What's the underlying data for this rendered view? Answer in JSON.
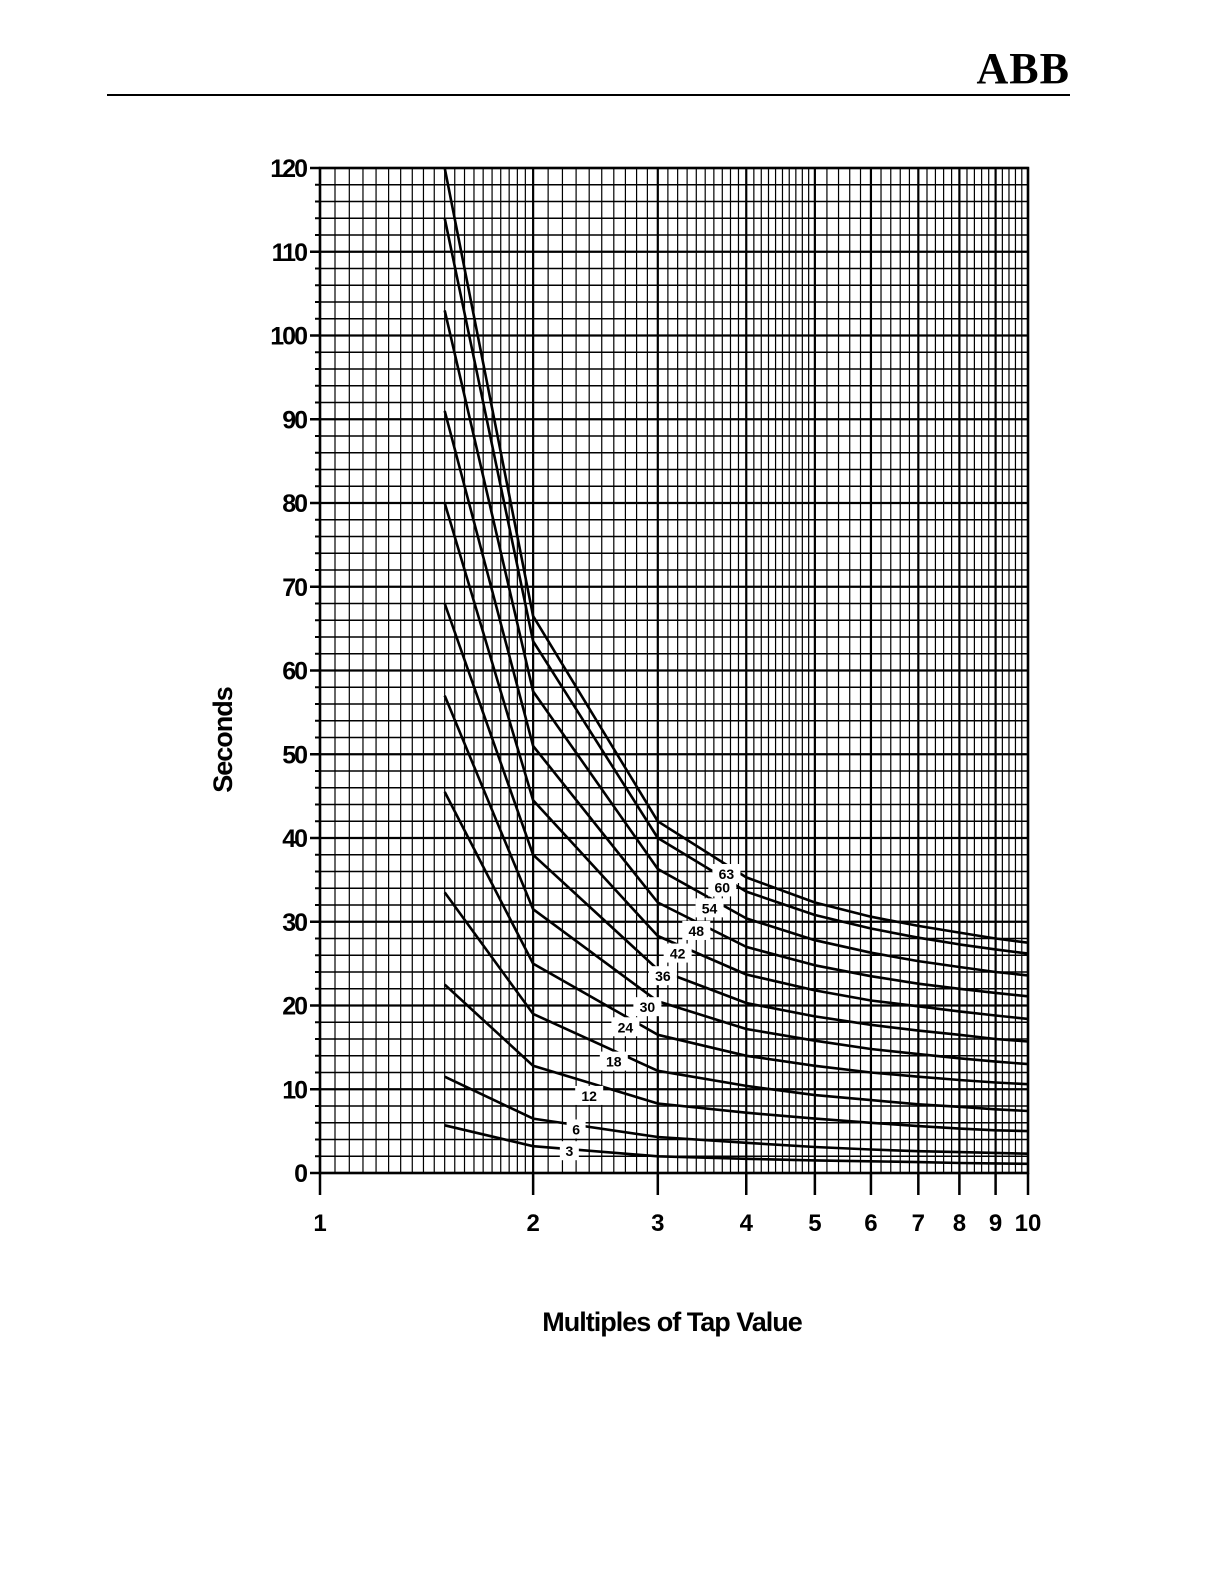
{
  "header": {
    "logo": "ABB"
  },
  "chart_data": {
    "type": "line",
    "title": "",
    "xlabel": "Multiples of Tap Value",
    "ylabel": "Seconds",
    "x_scale": "log",
    "xlim": [
      1,
      10
    ],
    "ylim": [
      0,
      120
    ],
    "grid": true,
    "x_ticks": [
      {
        "value": 1,
        "label": "1"
      },
      {
        "value": 2,
        "label": "2"
      },
      {
        "value": 3,
        "label": "3"
      },
      {
        "value": 4,
        "label": "4"
      },
      {
        "value": 5,
        "label": "5"
      },
      {
        "value": 6,
        "label": "6"
      },
      {
        "value": 7,
        "label": "7"
      },
      {
        "value": 8,
        "label": "8"
      },
      {
        "value": 9,
        "label": "9"
      },
      {
        "value": 10,
        "label": "10"
      }
    ],
    "y_ticks": [
      {
        "value": 0,
        "label": "0"
      },
      {
        "value": 10,
        "label": "10"
      },
      {
        "value": 20,
        "label": "20"
      },
      {
        "value": 30,
        "label": "30"
      },
      {
        "value": 40,
        "label": "40"
      },
      {
        "value": 50,
        "label": "50"
      },
      {
        "value": 60,
        "label": "60"
      },
      {
        "value": 70,
        "label": "70"
      },
      {
        "value": 80,
        "label": "80"
      },
      {
        "value": 90,
        "label": "90"
      },
      {
        "value": 100,
        "label": "100"
      },
      {
        "value": 110,
        "label": "110"
      },
      {
        "value": 120,
        "label": "120"
      }
    ],
    "series": [
      {
        "label": "3",
        "label_at": [
          2.25,
          2.6
        ],
        "x": [
          1.5,
          2,
          3,
          4,
          5,
          6,
          7,
          8,
          9,
          10
        ],
        "y": [
          5.7,
          3.2,
          2.0,
          1.7,
          1.5,
          1.4,
          1.3,
          1.2,
          1.15,
          1.1
        ]
      },
      {
        "label": "6",
        "label_at": [
          2.3,
          5.2
        ],
        "x": [
          1.5,
          2,
          3,
          4,
          5,
          6,
          7,
          8,
          9,
          10
        ],
        "y": [
          11.5,
          6.5,
          4.3,
          3.6,
          3.1,
          2.8,
          2.6,
          2.5,
          2.4,
          2.3
        ]
      },
      {
        "label": "12",
        "label_at": [
          2.4,
          9.2
        ],
        "x": [
          1.5,
          2,
          3,
          4,
          5,
          6,
          7,
          8,
          9,
          10
        ],
        "y": [
          22.5,
          12.8,
          8.3,
          7.2,
          6.5,
          6.0,
          5.6,
          5.3,
          5.1,
          5.0
        ]
      },
      {
        "label": "18",
        "label_at": [
          2.6,
          13.3
        ],
        "x": [
          1.5,
          2,
          3,
          4,
          5,
          6,
          7,
          8,
          9,
          10
        ],
        "y": [
          33.5,
          19.0,
          12.2,
          10.4,
          9.3,
          8.7,
          8.2,
          7.9,
          7.6,
          7.4
        ]
      },
      {
        "label": "24",
        "label_at": [
          2.7,
          17.4
        ],
        "x": [
          1.5,
          2,
          3,
          4,
          5,
          6,
          7,
          8,
          9,
          10
        ],
        "y": [
          45.5,
          25.0,
          16.5,
          14.0,
          12.8,
          12.0,
          11.5,
          11.1,
          10.8,
          10.6
        ]
      },
      {
        "label": "30",
        "label_at": [
          2.9,
          19.8
        ],
        "x": [
          1.5,
          2,
          3,
          4,
          5,
          6,
          7,
          8,
          9,
          10
        ],
        "y": [
          57,
          31.5,
          20.5,
          17.2,
          15.8,
          14.8,
          14.2,
          13.7,
          13.3,
          13.0
        ]
      },
      {
        "label": "36",
        "label_at": [
          3.05,
          23.5
        ],
        "x": [
          1.5,
          2,
          3,
          4,
          5,
          6,
          7,
          8,
          9,
          10
        ],
        "y": [
          68,
          38.0,
          24.3,
          20.3,
          18.7,
          17.7,
          17.0,
          16.5,
          16.0,
          15.7
        ]
      },
      {
        "label": "42",
        "label_at": [
          3.2,
          26.2
        ],
        "x": [
          1.5,
          2,
          3,
          4,
          5,
          6,
          7,
          8,
          9,
          10
        ],
        "y": [
          80,
          44.5,
          28.3,
          23.7,
          21.8,
          20.6,
          19.9,
          19.3,
          18.8,
          18.4
        ]
      },
      {
        "label": "48",
        "label_at": [
          3.4,
          28.9
        ],
        "x": [
          1.5,
          2,
          3,
          4,
          5,
          6,
          7,
          8,
          9,
          10
        ],
        "y": [
          91,
          51.0,
          32.3,
          27.0,
          24.8,
          23.5,
          22.6,
          22.0,
          21.5,
          21.1
        ]
      },
      {
        "label": "54",
        "label_at": [
          3.55,
          31.6
        ],
        "x": [
          1.5,
          2,
          3,
          4,
          5,
          6,
          7,
          8,
          9,
          10
        ],
        "y": [
          103,
          57.5,
          36.3,
          30.4,
          27.8,
          26.3,
          25.3,
          24.6,
          24.0,
          23.6
        ]
      },
      {
        "label": "60",
        "label_at": [
          3.7,
          34.1
        ],
        "x": [
          1.5,
          2,
          3,
          4,
          5,
          6,
          7,
          8,
          9,
          10
        ],
        "y": [
          114,
          63.5,
          40.0,
          33.6,
          30.8,
          29.2,
          28.1,
          27.3,
          26.7,
          26.2
        ]
      },
      {
        "label": "63",
        "label_at": [
          3.75,
          35.7
        ],
        "x": [
          1.5,
          2,
          3,
          4,
          5,
          6,
          7,
          8,
          9,
          10
        ],
        "y": [
          120,
          66.5,
          42.0,
          35.3,
          32.3,
          30.6,
          29.5,
          28.7,
          28.0,
          27.5
        ]
      }
    ]
  }
}
